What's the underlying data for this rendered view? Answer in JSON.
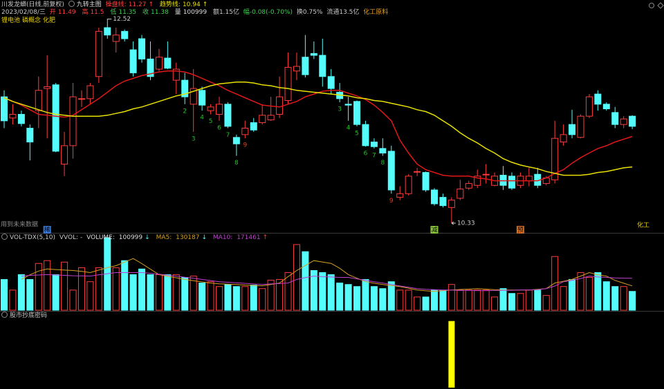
{
  "header": {
    "stock": "川发龙蟒(日线,前复权)",
    "indicator": "九转主图",
    "date": "2023/02/08/三",
    "open": "开",
    "high": "高",
    "low": "低",
    "close": "收",
    "volume": "量",
    "amount": "额1.15亿",
    "change": "幅-0.08(-0.70%)",
    "turnover": "换0.75%",
    "float": "流通13.5亿",
    "industry": "化工原料",
    "concepts": [
      "锂电池",
      "磷概念",
      "化肥"
    ]
  },
  "chart_data": [
    {
      "type": "candlestick",
      "ylim": [
        10.24,
        12.6
      ],
      "up_color": "#ff3c3c",
      "down_color": "#54fcfc",
      "open": [
        11.7,
        11.47,
        11.51,
        11.36,
        11.55,
        11.79,
        11.83,
        10.97,
        11.17,
        11.68,
        11.68,
        11.92,
        12.45,
        12.3,
        12.41,
        12.21,
        12.33,
        12.11,
        12.0,
        12.12,
        11.88,
        11.88,
        11.62,
        11.77,
        11.55,
        11.51,
        11.62,
        11.26,
        11.29,
        11.42,
        11.42,
        11.45,
        11.51,
        11.66,
        11.98,
        12.13,
        12.17,
        12.15,
        11.92,
        11.75,
        11.62,
        11.65,
        11.4,
        11.21,
        11.14,
        11.11,
        10.61,
        10.65,
        10.89,
        10.88,
        10.69,
        10.61,
        10.5,
        10.6,
        10.71,
        10.74,
        10.86,
        10.74,
        10.85,
        10.84,
        10.74,
        10.79,
        10.86,
        10.76,
        10.8,
        11.21,
        11.4,
        11.26,
        11.49,
        11.73,
        11.62,
        11.53,
        11.4,
        11.49
      ],
      "high": [
        11.77,
        11.62,
        11.55,
        11.4,
        11.92,
        12.15,
        11.85,
        11.32,
        11.85,
        11.77,
        11.85,
        12.45,
        12.52,
        12.45,
        12.43,
        12.3,
        12.37,
        12.3,
        12.22,
        12.3,
        12.07,
        11.96,
        12.0,
        11.81,
        11.62,
        11.7,
        11.64,
        11.29,
        11.44,
        11.47,
        11.62,
        11.7,
        11.92,
        12.18,
        12.18,
        12.37,
        12.3,
        12.33,
        12.0,
        11.85,
        11.7,
        11.66,
        11.44,
        11.25,
        11.25,
        11.17,
        10.73,
        10.86,
        10.93,
        10.89,
        10.71,
        10.65,
        10.61,
        10.8,
        10.79,
        10.91,
        10.97,
        10.88,
        10.95,
        10.88,
        10.88,
        10.93,
        10.93,
        10.84,
        11.44,
        11.4,
        11.56,
        11.51,
        11.73,
        11.77,
        11.64,
        11.59,
        11.49,
        11.5
      ],
      "low": [
        11.36,
        11.4,
        11.38,
        11.01,
        11.36,
        11.25,
        11.1,
        10.84,
        11.03,
        11.59,
        11.62,
        11.85,
        12.33,
        12.18,
        12.3,
        11.92,
        12.07,
        11.88,
        11.98,
        12.0,
        11.73,
        11.62,
        11.32,
        11.55,
        11.51,
        11.44,
        11.36,
        11.06,
        11.25,
        11.32,
        11.4,
        11.44,
        11.47,
        11.62,
        11.88,
        11.91,
        12.11,
        11.81,
        11.73,
        11.64,
        11.44,
        11.38,
        11.16,
        11.14,
        11.06,
        10.65,
        10.58,
        10.63,
        10.84,
        10.67,
        10.52,
        10.5,
        10.33,
        10.58,
        10.69,
        10.71,
        10.76,
        10.73,
        10.69,
        10.69,
        10.71,
        10.73,
        10.71,
        10.74,
        10.76,
        11.17,
        11.25,
        11.25,
        11.47,
        11.55,
        11.55,
        11.36,
        11.36,
        11.35
      ],
      "close": [
        11.44,
        11.51,
        11.41,
        11.21,
        11.77,
        11.81,
        11.11,
        11.17,
        11.7,
        11.68,
        11.82,
        12.41,
        12.37,
        12.37,
        12.33,
        11.96,
        12.11,
        11.92,
        12.13,
        12.01,
        12.0,
        11.7,
        11.79,
        11.61,
        11.59,
        11.62,
        11.38,
        11.19,
        11.36,
        11.34,
        11.5,
        11.5,
        11.7,
        12.02,
        12.03,
        11.94,
        12.15,
        11.92,
        11.79,
        11.68,
        11.61,
        11.4,
        11.17,
        11.16,
        11.09,
        10.69,
        10.65,
        10.84,
        10.89,
        10.69,
        10.54,
        10.52,
        10.58,
        10.7,
        10.76,
        10.84,
        10.86,
        10.84,
        10.74,
        10.71,
        10.84,
        10.84,
        10.74,
        10.82,
        11.25,
        11.29,
        11.29,
        11.49,
        11.7,
        11.62,
        11.57,
        11.4,
        11.46,
        11.38
      ],
      "lines": [
        {
          "name": "操盘线:",
          "color": "#e01818",
          "arrow": "↑",
          "values": [
            11.69,
            11.65,
            11.61,
            11.56,
            11.51,
            11.5,
            11.49,
            11.48,
            11.5,
            11.56,
            11.62,
            11.68,
            11.75,
            11.82,
            11.87,
            11.9,
            11.93,
            11.95,
            11.97,
            11.98,
            11.98,
            11.97,
            11.94,
            11.9,
            11.86,
            11.82,
            11.77,
            11.73,
            11.69,
            11.65,
            11.61,
            11.6,
            11.59,
            11.62,
            11.65,
            11.7,
            11.73,
            11.76,
            11.77,
            11.77,
            11.74,
            11.71,
            11.67,
            11.61,
            11.53,
            11.44,
            11.23,
            11.09,
            10.97,
            10.91,
            10.88,
            10.85,
            10.84,
            10.84,
            10.84,
            10.82,
            10.81,
            10.79,
            10.79,
            10.79,
            10.79,
            10.79,
            10.79,
            10.82,
            10.87,
            10.91,
            10.98,
            11.04,
            11.09,
            11.14,
            11.17,
            11.21,
            11.24,
            11.27
          ]
        },
        {
          "name": "趋势线:",
          "color": "#e8e000",
          "arrow": "↑",
          "values": [
            11.69,
            11.65,
            11.62,
            11.59,
            11.56,
            11.53,
            11.51,
            11.5,
            11.49,
            11.49,
            11.49,
            11.49,
            11.5,
            11.52,
            11.54,
            11.57,
            11.59,
            11.62,
            11.65,
            11.68,
            11.71,
            11.73,
            11.76,
            11.79,
            11.82,
            11.84,
            11.85,
            11.86,
            11.86,
            11.85,
            11.83,
            11.82,
            11.8,
            11.79,
            11.77,
            11.76,
            11.75,
            11.74,
            11.73,
            11.72,
            11.71,
            11.69,
            11.68,
            11.66,
            11.65,
            11.63,
            11.61,
            11.59,
            11.56,
            11.54,
            11.5,
            11.44,
            11.38,
            11.31,
            11.25,
            11.2,
            11.14,
            11.09,
            11.03,
            10.99,
            10.96,
            10.94,
            10.92,
            10.89,
            10.87,
            10.85,
            10.85,
            10.85,
            10.86,
            10.88,
            10.89,
            10.91,
            10.93,
            10.94
          ]
        }
      ],
      "td_counts": [
        null,
        null,
        null,
        null,
        null,
        null,
        null,
        null,
        null,
        null,
        null,
        null,
        null,
        null,
        null,
        null,
        null,
        null,
        null,
        null,
        null,
        2,
        3,
        4,
        5,
        6,
        7,
        8,
        9,
        null,
        null,
        null,
        null,
        null,
        null,
        null,
        null,
        null,
        null,
        3,
        4,
        5,
        6,
        7,
        8,
        9,
        null,
        null,
        null,
        null,
        null,
        null,
        null,
        null,
        null,
        null,
        null,
        null,
        null,
        null,
        null,
        null,
        null,
        null,
        null,
        null,
        null,
        null,
        null,
        null,
        null,
        null,
        null,
        null
      ],
      "td_colors": [
        null,
        null,
        null,
        null,
        null,
        null,
        null,
        null,
        null,
        null,
        null,
        null,
        null,
        null,
        null,
        null,
        null,
        null,
        null,
        null,
        null,
        "#22c022",
        "#22c022",
        "#22c022",
        "#22c022",
        "#22c022",
        "#22c022",
        "#22c022",
        "#e0401a",
        null,
        null,
        null,
        null,
        null,
        null,
        null,
        null,
        null,
        null,
        "#22c022",
        "#22c022",
        "#22c022",
        "#22c022",
        "#22c022",
        "#22c022",
        "#e0401a",
        null,
        null,
        null,
        null,
        null,
        null,
        null,
        null,
        null,
        null,
        null,
        null,
        null,
        null,
        null,
        null,
        null,
        null,
        null,
        null,
        null,
        null,
        null,
        null,
        null,
        null,
        null,
        null
      ],
      "markers": [
        null,
        null,
        null,
        null,
        null,
        "稀",
        null,
        null,
        null,
        null,
        null,
        null,
        null,
        null,
        null,
        null,
        null,
        null,
        null,
        null,
        null,
        null,
        null,
        null,
        null,
        null,
        null,
        null,
        null,
        null,
        null,
        null,
        null,
        null,
        null,
        null,
        null,
        null,
        null,
        null,
        null,
        null,
        null,
        null,
        null,
        null,
        null,
        null,
        null,
        null,
        "减",
        null,
        null,
        null,
        null,
        null,
        null,
        null,
        null,
        null,
        "预",
        null,
        null,
        null,
        null,
        null,
        null,
        null,
        null,
        null,
        null,
        null,
        null,
        null
      ],
      "marker_colors": [
        null,
        null,
        null,
        null,
        null,
        "#3a7ad8",
        null,
        null,
        null,
        null,
        null,
        null,
        null,
        null,
        null,
        null,
        null,
        null,
        null,
        null,
        null,
        null,
        null,
        null,
        null,
        null,
        null,
        null,
        null,
        null,
        null,
        null,
        null,
        null,
        null,
        null,
        null,
        null,
        null,
        null,
        null,
        null,
        null,
        null,
        null,
        null,
        null,
        null,
        null,
        null,
        "#8cc83c",
        null,
        null,
        null,
        null,
        null,
        null,
        null,
        null,
        null,
        "#e07020",
        null,
        null,
        null,
        null,
        null,
        null,
        null,
        null,
        null,
        null,
        null,
        null,
        null
      ],
      "note": "用到未来数据",
      "sector_tag": "化工"
    },
    {
      "type": "bar",
      "title": "VOL-TDX(5,10)",
      "vvol": "VVOL: -",
      "ylim": [
        0,
        400000
      ],
      "series": [
        {
          "name": "VOLUME:",
          "arrow": "↓",
          "values": [
            165000,
            108000,
            191000,
            165000,
            251000,
            266000,
            191000,
            258000,
            108000,
            228000,
            153000,
            228000,
            389000,
            228000,
            266000,
            191000,
            221000,
            191000,
            191000,
            191000,
            191000,
            176000,
            183000,
            146000,
            153000,
            127000,
            138000,
            127000,
            127000,
            135000,
            116000,
            161000,
            165000,
            202000,
            352000,
            314000,
            213000,
            202000,
            191000,
            146000,
            138000,
            127000,
            165000,
            127000,
            116000,
            153000,
            108000,
            108000,
            71000,
            71000,
            108000,
            108000,
            138000,
            108000,
            108000,
            108000,
            108000,
            71000,
            116000,
            90000,
            90000,
            108000,
            108000,
            79000,
            288000,
            127000,
            165000,
            202000,
            176000,
            202000,
            153000,
            127000,
            127000,
            100999
          ]
        }
      ],
      "lines": [
        {
          "name": "MA5:",
          "color": "#d8a020",
          "arrow": "↓",
          "values": [
            null,
            null,
            165000,
            190000,
            210000,
            221000,
            218000,
            215000,
            213000,
            208000,
            202000,
            215000,
            228000,
            239000,
            258000,
            277000,
            250000,
            220000,
            191000,
            182000,
            174000,
            165000,
            158000,
            152000,
            146000,
            142000,
            140000,
            138000,
            135000,
            133000,
            131000,
            138000,
            146000,
            180000,
            213000,
            240000,
            266000,
            258000,
            251000,
            225000,
            191000,
            172000,
            153000,
            145000,
            138000,
            132000,
            127000,
            118000,
            108000,
            104000,
            101000,
            105000,
            108000,
            111000,
            113000,
            116000,
            113000,
            110000,
            108000,
            108000,
            108000,
            108000,
            112000,
            116000,
            146000,
            155000,
            165000,
            183000,
            202000,
            190000,
            183000,
            160000,
            145000,
            130187
          ]
        },
        {
          "name": "MA10:",
          "color": "#c040d0",
          "arrow": "↑",
          "values": [
            null,
            null,
            183000,
            187000,
            189000,
            191000,
            189000,
            187000,
            185000,
            184000,
            183000,
            190000,
            196000,
            202000,
            202000,
            202000,
            202000,
            198000,
            193000,
            188000,
            183000,
            177000,
            171000,
            165000,
            159000,
            153000,
            150000,
            147000,
            144000,
            141000,
            138000,
            141000,
            143000,
            146000,
            165000,
            175000,
            183000,
            180000,
            178000,
            176000,
            176000,
            168000,
            160000,
            153000,
            146000,
            138000,
            130000,
            123000,
            116000,
            112000,
            110000,
            108000,
            108000,
            106000,
            106000,
            105000,
            105000,
            106000,
            107000,
            107000,
            108000,
            109000,
            110000,
            116000,
            130000,
            153000,
            160000,
            170000,
            183000,
            178000,
            176000,
            173000,
            172000,
            171461
          ]
        }
      ]
    },
    {
      "type": "bar",
      "title": "股市抄底密码",
      "color": "#ffff00",
      "ylim": [
        0,
        1.1
      ],
      "values": [
        null,
        null,
        null,
        null,
        null,
        null,
        null,
        null,
        null,
        null,
        null,
        null,
        null,
        null,
        null,
        null,
        null,
        null,
        null,
        null,
        null,
        null,
        null,
        null,
        null,
        null,
        null,
        null,
        null,
        null,
        null,
        null,
        null,
        null,
        null,
        null,
        null,
        null,
        null,
        null,
        null,
        null,
        null,
        null,
        null,
        null,
        null,
        null,
        null,
        null,
        null,
        null,
        1,
        null,
        null,
        null,
        null,
        null,
        null,
        null,
        null,
        null,
        null,
        null,
        null,
        null,
        null,
        null,
        null,
        null,
        null,
        null,
        null,
        null
      ]
    }
  ]
}
